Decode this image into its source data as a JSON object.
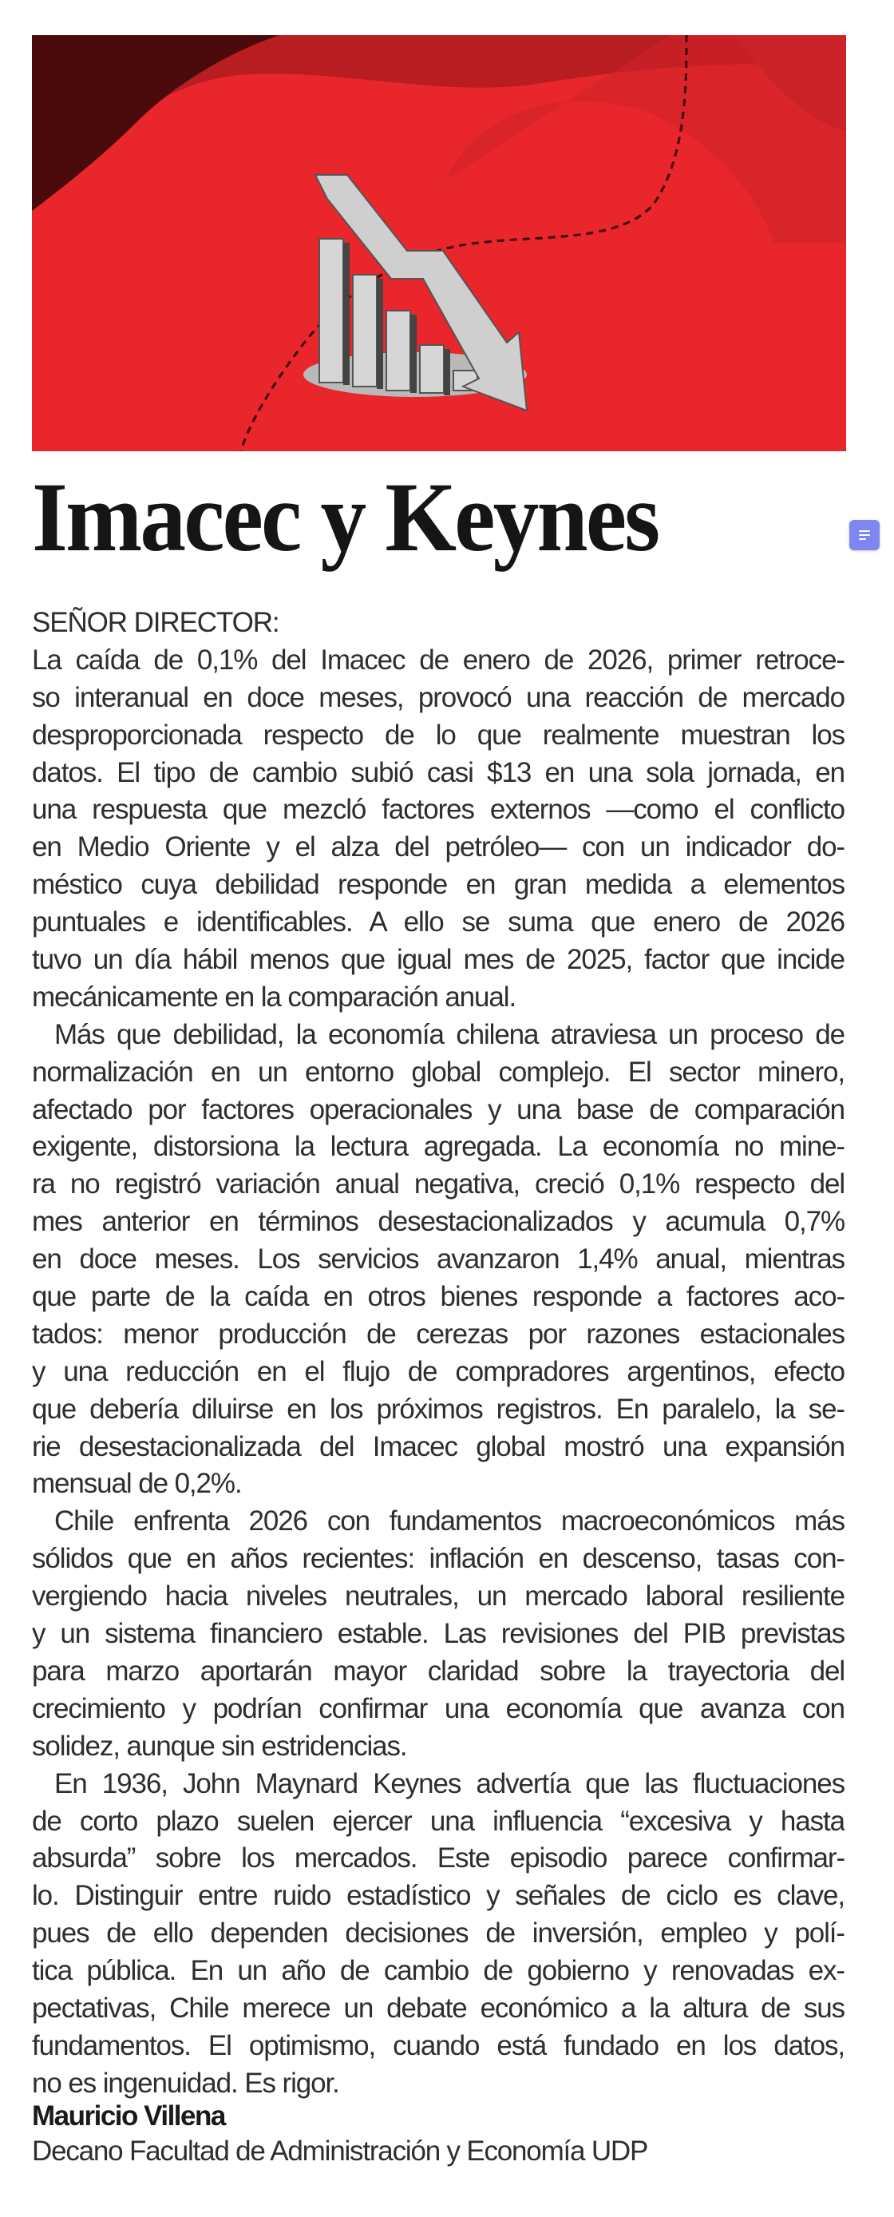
{
  "hero": {
    "icon": "declining-bar-chart-illustration",
    "background_color": "#e8262b"
  },
  "title": "Imacec y Keynes",
  "note_icon": {
    "icon": "note-icon",
    "color": "#7e86f2"
  },
  "salutation": "SEÑOR DIRECTOR:",
  "paragraphs": [
    [
      "La caída de 0,1% del Imacec de enero de 2026, primer retroce-",
      "so interanual en doce meses, provocó una reacción de mercado",
      "desproporcionada respecto de lo que realmente muestran los",
      "datos. El tipo de cambio subió casi $13 en una sola jornada, en",
      "una respuesta que mezcló factores externos —como el conflicto",
      "en Medio Oriente y el alza del petróleo— con un indicador do-",
      "méstico cuya debilidad responde en gran medida a elementos",
      "puntuales e identificables. A ello se suma que enero de 2026",
      "tuvo un día hábil menos que igual mes de 2025, factor que incide",
      "mecánicamente en la comparación anual."
    ],
    [
      "Más que debilidad, la economía chilena atraviesa un proceso de",
      "normalización en un entorno global complejo. El sector minero,",
      "afectado por factores operacionales y una base de comparación",
      "exigente, distorsiona la lectura agregada. La economía no mine-",
      "ra no registró variación anual negativa, creció 0,1% respecto del",
      "mes anterior en términos desestacionalizados y acumula 0,7%",
      "en doce meses. Los servicios avanzaron 1,4% anual, mientras",
      "que parte de la caída en otros bienes responde a factores aco-",
      "tados: menor producción de cerezas por razones estacionales",
      "y una reducción en el flujo de compradores argentinos, efecto",
      "que debería diluirse en los próximos registros. En paralelo, la se-",
      "rie desestacionalizada del Imacec global mostró una expansión",
      "mensual de 0,2%."
    ],
    [
      "Chile enfrenta 2026 con fundamentos macroeconómicos más",
      "sólidos que en años recientes: inflación en descenso, tasas con-",
      "vergiendo hacia niveles neutrales, un mercado laboral resiliente",
      "y un sistema financiero estable. Las revisiones del PIB previstas",
      "para marzo aportarán mayor claridad sobre la trayectoria del",
      "crecimiento y podrían confirmar una economía que avanza con",
      "solidez, aunque sin estridencias."
    ],
    [
      "En 1936, John Maynard Keynes advertía que las fluctuaciones",
      "de corto plazo suelen ejercer una influencia “excesiva y hasta",
      "absurda” sobre los mercados. Este episodio parece confirmar-",
      "lo. Distinguir entre ruido estadístico y señales de ciclo es clave,",
      "pues de ello dependen decisiones de inversión, empleo y polí-",
      "tica pública. En un año de cambio de gobierno y renovadas ex-",
      "pectativas, Chile merece un debate económico a la altura de sus",
      "fundamentos. El optimismo, cuando está fundado en los datos,",
      "no es ingenuidad. Es rigor."
    ]
  ],
  "signature": {
    "name": "Mauricio Villena",
    "role": "Decano Facultad de Administración y Economía UDP"
  }
}
